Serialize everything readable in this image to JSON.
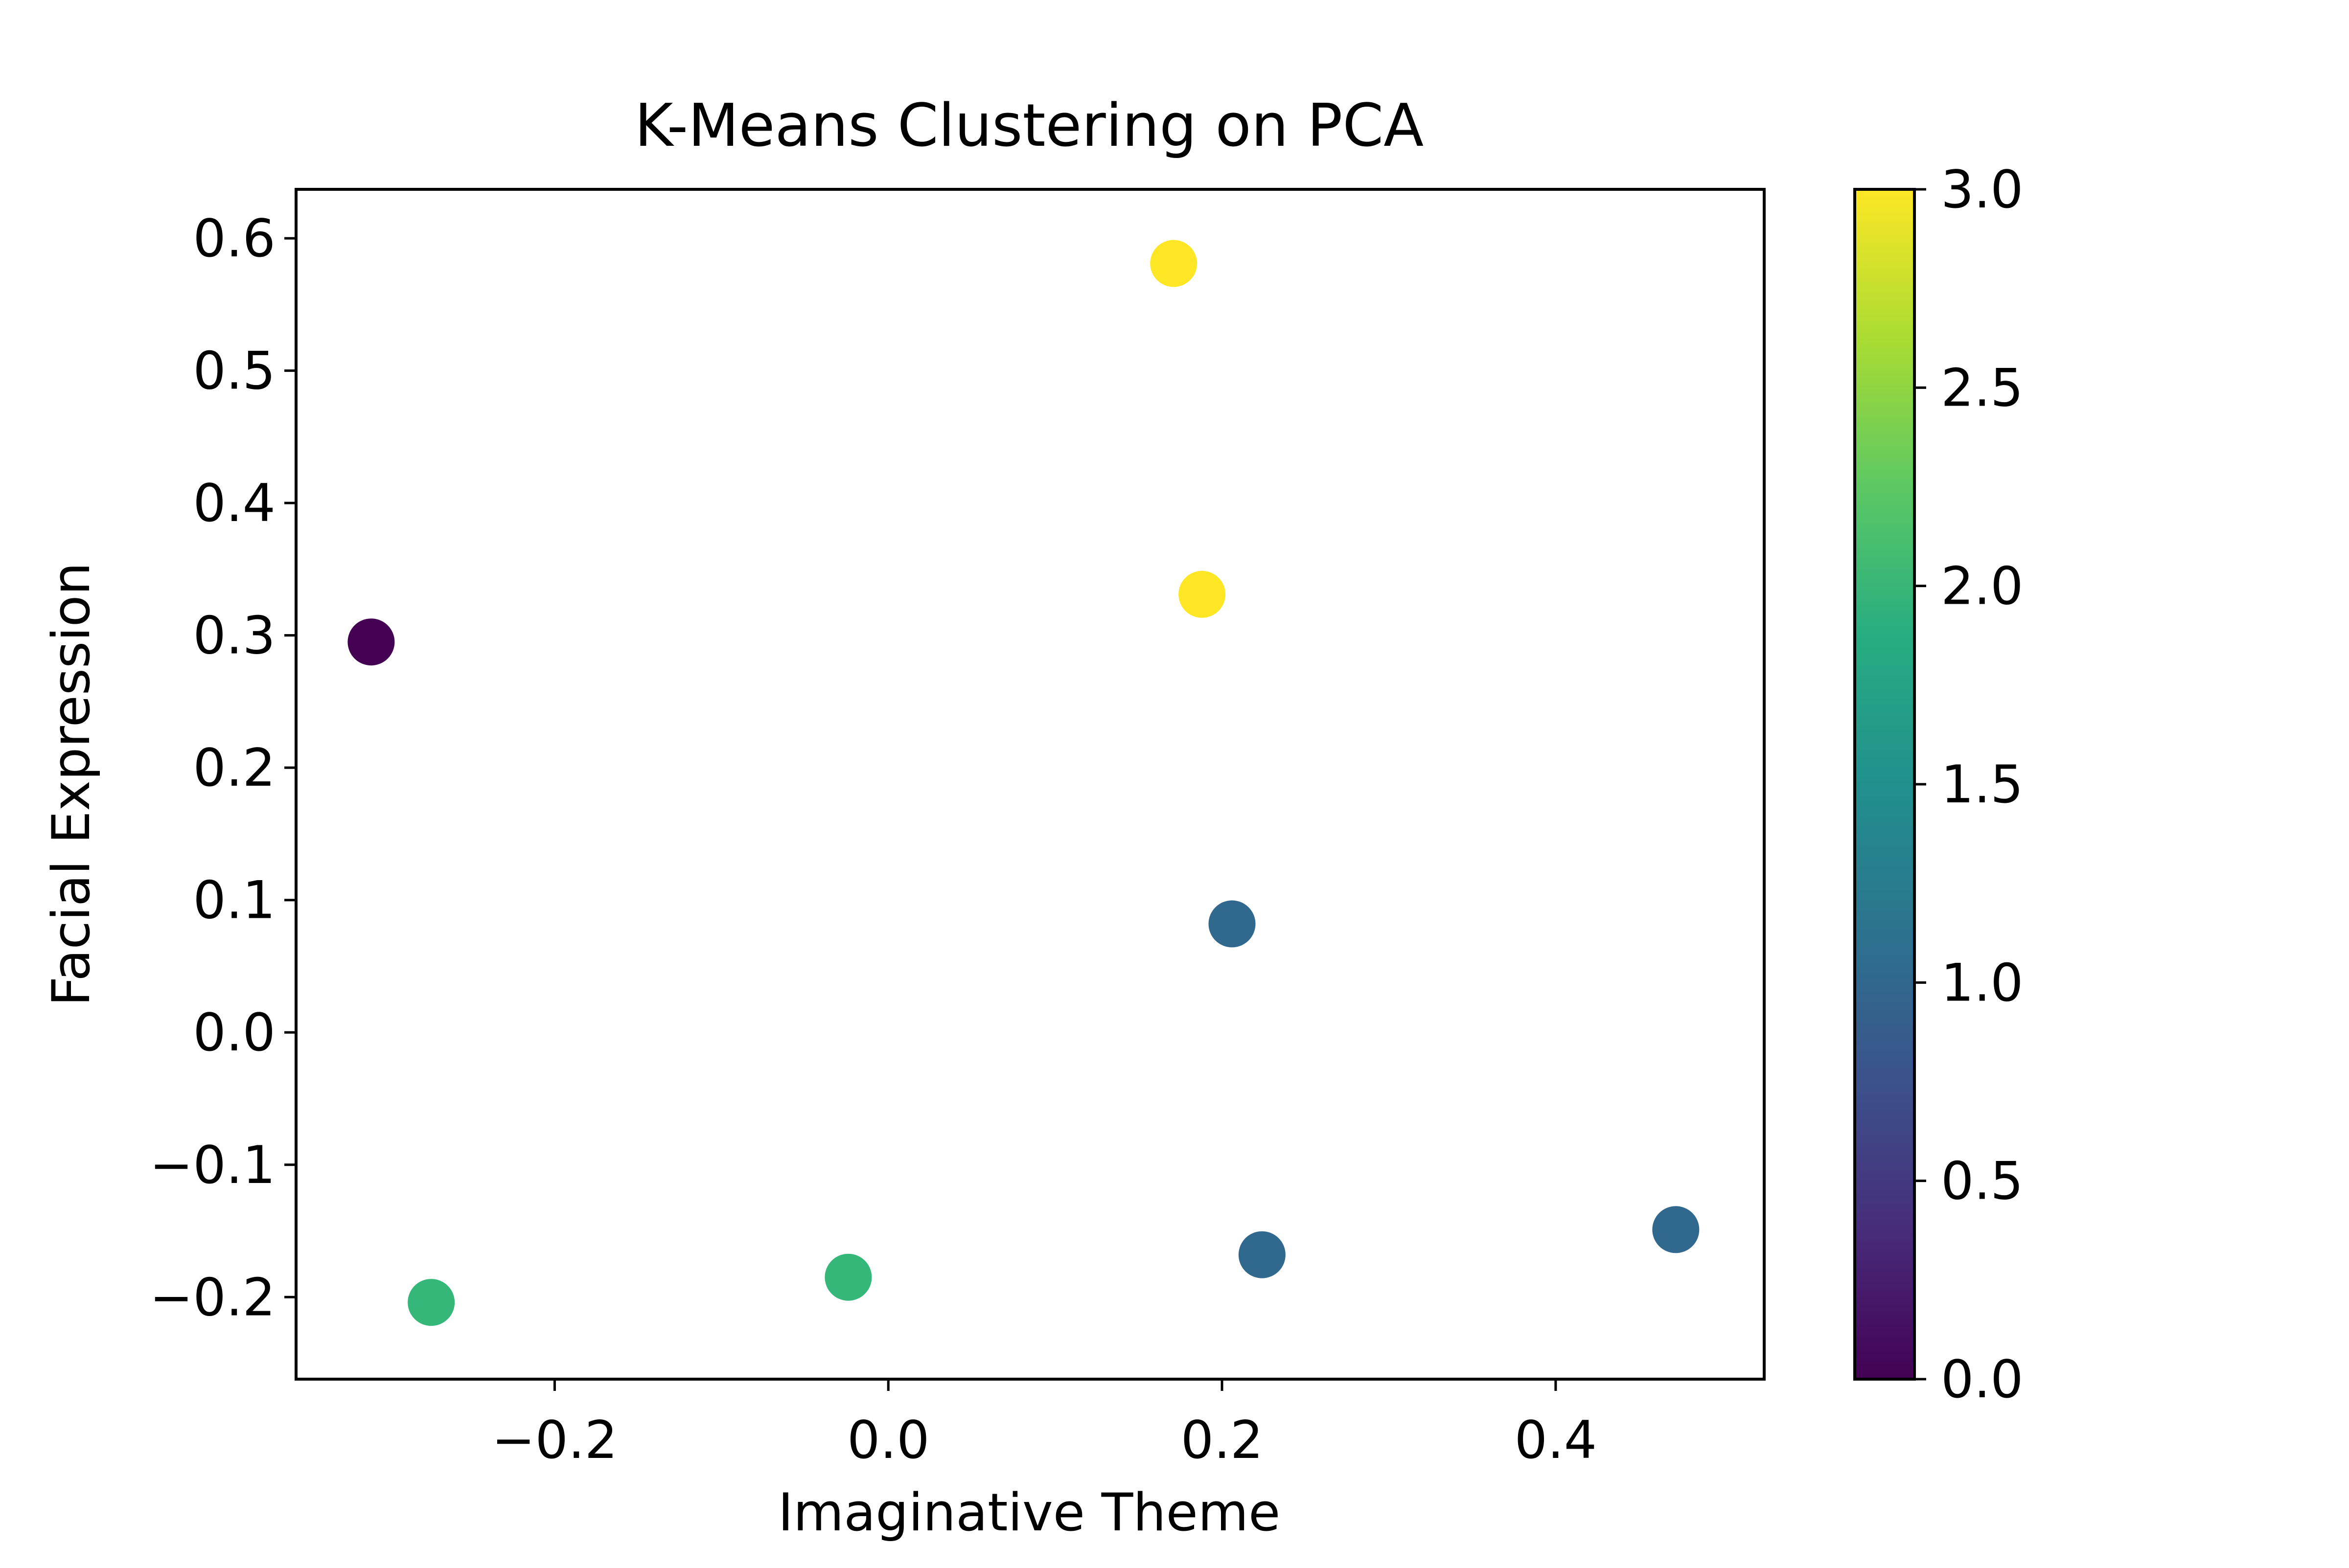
{
  "chart_data": {
    "type": "scatter",
    "title": "K-Means Clustering on PCA",
    "xlabel": "Imaginative Theme",
    "ylabel": "Facial Expression",
    "xlim": [
      -0.355,
      0.525
    ],
    "ylim": [
      -0.262,
      0.637
    ],
    "xticks": [
      -0.2,
      0.0,
      0.2,
      0.4
    ],
    "xtick_labels": [
      "−0.2",
      "0.0",
      "0.2",
      "0.4"
    ],
    "yticks": [
      -0.2,
      -0.1,
      0.0,
      0.1,
      0.2,
      0.3,
      0.4,
      0.5,
      0.6
    ],
    "ytick_labels": [
      "−0.2",
      "−0.1",
      "0.0",
      "0.1",
      "0.2",
      "0.3",
      "0.4",
      "0.5",
      "0.6"
    ],
    "grid": false,
    "colormap": "viridis",
    "colorbar": {
      "range": [
        0.0,
        3.0
      ],
      "ticks": [
        0.0,
        0.5,
        1.0,
        1.5,
        2.0,
        2.5,
        3.0
      ],
      "tick_labels": [
        "0.0",
        "0.5",
        "1.0",
        "1.5",
        "2.0",
        "2.5",
        "3.0"
      ],
      "stops": [
        "#440154",
        "#472c7a",
        "#3b528b",
        "#2c728e",
        "#21908d",
        "#27ad81",
        "#5cc863",
        "#aadc32",
        "#fde725"
      ]
    },
    "points": [
      {
        "x": -0.31,
        "y": 0.295,
        "cluster": 0,
        "color": "#440154"
      },
      {
        "x": 0.171,
        "y": 0.581,
        "cluster": 3,
        "color": "#fde725"
      },
      {
        "x": 0.188,
        "y": 0.331,
        "cluster": 3,
        "color": "#fde725"
      },
      {
        "x": 0.206,
        "y": 0.082,
        "cluster": 1,
        "color": "#31688e"
      },
      {
        "x": 0.224,
        "y": -0.168,
        "cluster": 1,
        "color": "#31688e"
      },
      {
        "x": 0.472,
        "y": -0.149,
        "cluster": 1,
        "color": "#31688e"
      },
      {
        "x": -0.274,
        "y": -0.204,
        "cluster": 2,
        "color": "#35b779"
      },
      {
        "x": -0.024,
        "y": -0.185,
        "cluster": 2,
        "color": "#35b779"
      }
    ]
  }
}
